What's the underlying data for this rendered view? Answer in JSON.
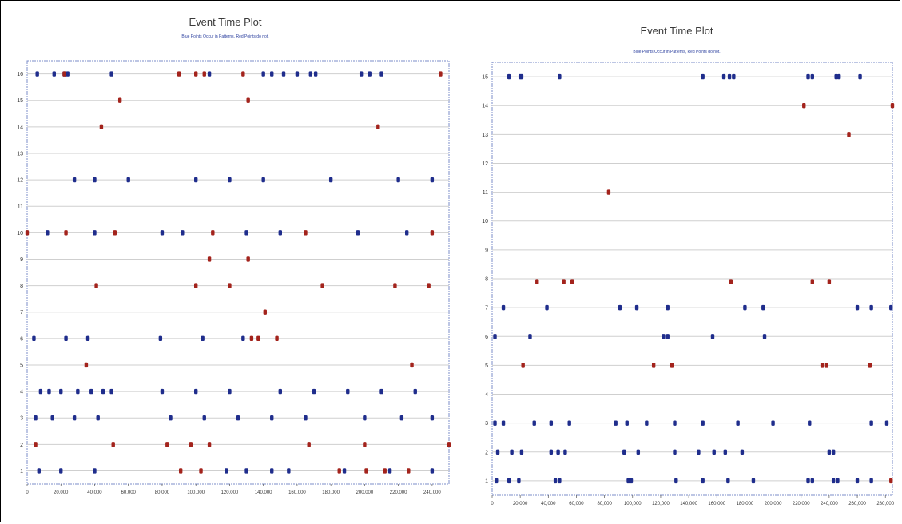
{
  "colors": {
    "pattern": "#1f2d8c",
    "not_pattern": "#a3231c",
    "grid": "#cfcfcf",
    "axis": "#7b8cc9"
  },
  "chart_data": [
    {
      "type": "scatter",
      "title": "Event Time Plot",
      "subtitle": "Blue Points Occur in Patterns, Red Points do not.",
      "xlim": [
        0,
        250000
      ],
      "ylim": [
        0.5,
        16.5
      ],
      "x_ticks": [
        "0",
        "20,000",
        "40,000",
        "60,000",
        "80,000",
        "100,000",
        "120,000",
        "140,000",
        "160,000",
        "180,000",
        "200,000",
        "220,000",
        "240,000"
      ],
      "y_ticks": [
        "1",
        "2",
        "3",
        "4",
        "5",
        "6",
        "7",
        "8",
        "9",
        "10",
        "11",
        "12",
        "13",
        "14",
        "15",
        "16"
      ],
      "grid": true,
      "series": [
        {
          "color": "blue",
          "points": [
            [
              6000,
              16
            ],
            [
              16000,
              16
            ],
            [
              22000,
              16
            ],
            [
              24000,
              16
            ],
            [
              50000,
              16
            ],
            [
              108000,
              16
            ],
            [
              140000,
              16
            ],
            [
              145000,
              16
            ],
            [
              152000,
              16
            ],
            [
              160000,
              16
            ],
            [
              168000,
              16
            ],
            [
              171000,
              16
            ],
            [
              198000,
              16
            ],
            [
              203000,
              16
            ],
            [
              210000,
              16
            ],
            [
              28000,
              12
            ],
            [
              40000,
              12
            ],
            [
              60000,
              12
            ],
            [
              100000,
              12
            ],
            [
              120000,
              12
            ],
            [
              140000,
              12
            ],
            [
              180000,
              12
            ],
            [
              220000,
              12
            ],
            [
              240000,
              12
            ],
            [
              12000,
              10
            ],
            [
              40000,
              10
            ],
            [
              80000,
              10
            ],
            [
              92000,
              10
            ],
            [
              130000,
              10
            ],
            [
              150000,
              10
            ],
            [
              196000,
              10
            ],
            [
              225000,
              10
            ],
            [
              4000,
              6
            ],
            [
              23000,
              6
            ],
            [
              36000,
              6
            ],
            [
              79000,
              6
            ],
            [
              104000,
              6
            ],
            [
              128000,
              6
            ],
            [
              8000,
              4
            ],
            [
              13000,
              4
            ],
            [
              20000,
              4
            ],
            [
              30000,
              4
            ],
            [
              38000,
              4
            ],
            [
              45000,
              4
            ],
            [
              50000,
              4
            ],
            [
              80000,
              4
            ],
            [
              100000,
              4
            ],
            [
              120000,
              4
            ],
            [
              150000,
              4
            ],
            [
              170000,
              4
            ],
            [
              190000,
              4
            ],
            [
              210000,
              4
            ],
            [
              230000,
              4
            ],
            [
              5000,
              3
            ],
            [
              15000,
              3
            ],
            [
              28000,
              3
            ],
            [
              42000,
              3
            ],
            [
              85000,
              3
            ],
            [
              105000,
              3
            ],
            [
              125000,
              3
            ],
            [
              145000,
              3
            ],
            [
              165000,
              3
            ],
            [
              200000,
              3
            ],
            [
              222000,
              3
            ],
            [
              240000,
              3
            ],
            [
              7000,
              1
            ],
            [
              20000,
              1
            ],
            [
              40000,
              1
            ],
            [
              118000,
              1
            ],
            [
              130000,
              1
            ],
            [
              145000,
              1
            ],
            [
              155000,
              1
            ],
            [
              188000,
              1
            ],
            [
              215000,
              1
            ],
            [
              240000,
              1
            ]
          ]
        },
        {
          "color": "red",
          "points": [
            [
              22000,
              16
            ],
            [
              90000,
              16
            ],
            [
              100000,
              16
            ],
            [
              105000,
              16
            ],
            [
              128000,
              16
            ],
            [
              245000,
              16
            ],
            [
              55000,
              15
            ],
            [
              131000,
              15
            ],
            [
              44000,
              14
            ],
            [
              208000,
              14
            ],
            [
              0,
              10
            ],
            [
              23000,
              10
            ],
            [
              52000,
              10
            ],
            [
              110000,
              10
            ],
            [
              165000,
              10
            ],
            [
              240000,
              10
            ],
            [
              108000,
              9
            ],
            [
              131000,
              9
            ],
            [
              41000,
              8
            ],
            [
              100000,
              8
            ],
            [
              120000,
              8
            ],
            [
              175000,
              8
            ],
            [
              218000,
              8
            ],
            [
              238000,
              8
            ],
            [
              141000,
              7
            ],
            [
              133000,
              6
            ],
            [
              137000,
              6
            ],
            [
              148000,
              6
            ],
            [
              35000,
              5
            ],
            [
              228000,
              5
            ],
            [
              5000,
              2
            ],
            [
              51000,
              2
            ],
            [
              83000,
              2
            ],
            [
              97000,
              2
            ],
            [
              108000,
              2
            ],
            [
              167000,
              2
            ],
            [
              200000,
              2
            ],
            [
              250000,
              2
            ],
            [
              91000,
              1
            ],
            [
              103000,
              1
            ],
            [
              185000,
              1
            ],
            [
              201000,
              1
            ],
            [
              212000,
              1
            ],
            [
              226000,
              1
            ]
          ]
        }
      ]
    },
    {
      "type": "scatter",
      "title": "Event Time Plot",
      "subtitle": "Blue Points Occur in Patterns, Red Points do not.",
      "xlim": [
        0,
        285000
      ],
      "ylim": [
        0.5,
        15.5
      ],
      "x_ticks": [
        "0",
        "20,000",
        "40,000",
        "60,000",
        "80,000",
        "100,000",
        "120,000",
        "140,000",
        "160,000",
        "180,000",
        "200,000",
        "220,000",
        "240,000",
        "260,000",
        "280,000"
      ],
      "y_ticks": [
        "1",
        "2",
        "3",
        "4",
        "5",
        "6",
        "7",
        "8",
        "9",
        "10",
        "11",
        "12",
        "13",
        "14",
        "15"
      ],
      "grid": true,
      "series": [
        {
          "color": "blue",
          "points": [
            [
              12000,
              15
            ],
            [
              20000,
              15
            ],
            [
              21000,
              15
            ],
            [
              48000,
              15
            ],
            [
              150000,
              15
            ],
            [
              165000,
              15
            ],
            [
              169000,
              15
            ],
            [
              172000,
              15
            ],
            [
              225000,
              15
            ],
            [
              228000,
              15
            ],
            [
              245000,
              15
            ],
            [
              247000,
              15
            ],
            [
              262000,
              15
            ],
            [
              2000,
              6
            ],
            [
              27000,
              6
            ],
            [
              122000,
              6
            ],
            [
              125000,
              6
            ],
            [
              157000,
              6
            ],
            [
              194000,
              6
            ],
            [
              8000,
              7
            ],
            [
              39000,
              7
            ],
            [
              91000,
              7
            ],
            [
              103000,
              7
            ],
            [
              125000,
              7
            ],
            [
              180000,
              7
            ],
            [
              193000,
              7
            ],
            [
              260000,
              7
            ],
            [
              270000,
              7
            ],
            [
              284000,
              7
            ],
            [
              3000,
              1
            ],
            [
              12000,
              1
            ],
            [
              19000,
              1
            ],
            [
              45000,
              1
            ],
            [
              48000,
              1
            ],
            [
              97000,
              1
            ],
            [
              99000,
              1
            ],
            [
              131000,
              1
            ],
            [
              150000,
              1
            ],
            [
              168000,
              1
            ],
            [
              186000,
              1
            ],
            [
              225000,
              1
            ],
            [
              228000,
              1
            ],
            [
              243000,
              1
            ],
            [
              246000,
              1
            ],
            [
              260000,
              1
            ],
            [
              270000,
              1
            ],
            [
              4000,
              2
            ],
            [
              14000,
              2
            ],
            [
              21000,
              2
            ],
            [
              42000,
              2
            ],
            [
              47000,
              2
            ],
            [
              52000,
              2
            ],
            [
              94000,
              2
            ],
            [
              104000,
              2
            ],
            [
              130000,
              2
            ],
            [
              147000,
              2
            ],
            [
              158000,
              2
            ],
            [
              166000,
              2
            ],
            [
              178000,
              2
            ],
            [
              240000,
              2
            ],
            [
              243000,
              2
            ],
            [
              2000,
              3
            ],
            [
              8000,
              3
            ],
            [
              30000,
              3
            ],
            [
              42000,
              3
            ],
            [
              55000,
              3
            ],
            [
              88000,
              3
            ],
            [
              96000,
              3
            ],
            [
              110000,
              3
            ],
            [
              130000,
              3
            ],
            [
              150000,
              3
            ],
            [
              175000,
              3
            ],
            [
              200000,
              3
            ],
            [
              226000,
              3
            ],
            [
              270000,
              3
            ],
            [
              281000,
              3
            ]
          ]
        },
        {
          "color": "red",
          "points": [
            [
              222000,
              14
            ],
            [
              285000,
              14
            ],
            [
              254000,
              13
            ],
            [
              83000,
              11
            ],
            [
              32000,
              7.9
            ],
            [
              51000,
              7.9
            ],
            [
              57000,
              7.9
            ],
            [
              170000,
              7.9
            ],
            [
              228000,
              7.9
            ],
            [
              240000,
              7.9
            ],
            [
              22000,
              5
            ],
            [
              115000,
              5
            ],
            [
              128000,
              5
            ],
            [
              235000,
              5
            ],
            [
              238000,
              5
            ],
            [
              269000,
              5
            ],
            [
              284000,
              1
            ]
          ]
        }
      ]
    }
  ]
}
